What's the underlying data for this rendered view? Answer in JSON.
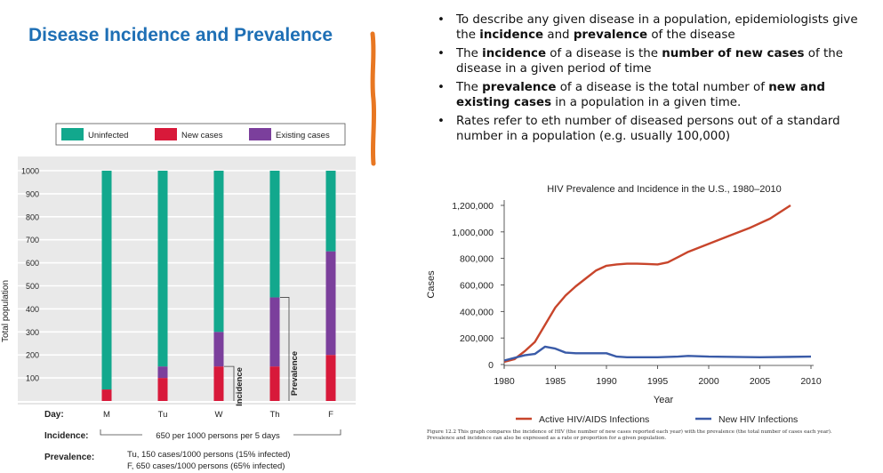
{
  "slide": {
    "title": "Disease Incidence and Prevalence",
    "bullets": [
      [
        "To describe any given disease in a population, epidemiologists give the ",
        {
          "b": "incidence"
        },
        " and ",
        {
          "b": "prevalence"
        },
        " of the disease"
      ],
      [
        "The ",
        {
          "b": "incidence"
        },
        " of a disease is the ",
        {
          "b": "number of new cases"
        },
        " of the disease in a given period of time"
      ],
      [
        "The ",
        {
          "b": "prevalence"
        },
        " of a disease is the total number of ",
        {
          "b": "new and existing cases"
        },
        " in a population in a given time."
      ],
      [
        "Rates refer to eth number of diseased persons out of a standard number in a population (e.g. usually 100,000)"
      ]
    ],
    "accent_color": "#e87722"
  },
  "chart_data": [
    {
      "type": "bar",
      "stacked": true,
      "ylabel": "Total population",
      "ylim": [
        0,
        1000
      ],
      "yticks": [
        100,
        200,
        300,
        400,
        500,
        600,
        700,
        800,
        900,
        1000
      ],
      "day_label": "Day:",
      "categories": [
        "M",
        "Tu",
        "W",
        "Th",
        "F"
      ],
      "series": [
        {
          "name": "New cases",
          "color": "#d8193a",
          "values": [
            50,
            100,
            150,
            150,
            200
          ]
        },
        {
          "name": "Existing cases",
          "color": "#7b3f9c",
          "values": [
            0,
            50,
            150,
            300,
            450
          ]
        },
        {
          "name": "Uninfected",
          "color": "#12a88d",
          "values": [
            950,
            850,
            700,
            550,
            350
          ]
        }
      ],
      "legend_order": [
        "Uninfected",
        "New cases",
        "Existing cases"
      ],
      "bracket_labels": [
        "Incidence",
        "Prevalence"
      ],
      "incidence_label": "Incidence:",
      "incidence_text": "650 per 1000 persons per 5 days",
      "prevalence_label": "Prevalence:",
      "prevalence_lines": [
        "Tu, 150 cases/1000 persons (15% infected)",
        "F, 650 cases/1000 persons (65% infected)"
      ]
    },
    {
      "type": "line",
      "title": "HIV Prevalence and Incidence in the U.S., 1980–2010",
      "xlabel": "Year",
      "ylabel": "Cases",
      "xlim": [
        1980,
        2010
      ],
      "ylim": [
        0,
        1200000
      ],
      "xticks": [
        1980,
        1985,
        1990,
        1995,
        2000,
        2005,
        2010
      ],
      "yticks": [
        0,
        200000,
        400000,
        600000,
        800000,
        1000000,
        1200000
      ],
      "ytick_labels": [
        "0",
        "200,000",
        "400,000",
        "600,000",
        "800,000",
        "1,000,000",
        "1,200,000"
      ],
      "series": [
        {
          "name": "Active HIV/AIDS Infections",
          "color": "#c8452b",
          "x": [
            1980,
            1981,
            1982,
            1983,
            1984,
            1985,
            1986,
            1987,
            1988,
            1989,
            1990,
            1991,
            1992,
            1993,
            1994,
            1995,
            1996,
            1997,
            1998,
            2000,
            2002,
            2004,
            2006,
            2008
          ],
          "y": [
            20000,
            40000,
            100000,
            170000,
            300000,
            430000,
            520000,
            590000,
            650000,
            710000,
            745000,
            755000,
            760000,
            760000,
            758000,
            755000,
            770000,
            810000,
            850000,
            910000,
            970000,
            1030000,
            1100000,
            1200000
          ]
        },
        {
          "name": "New HIV Infections",
          "color": "#3a5ba8",
          "x": [
            1980,
            1981,
            1982,
            1983,
            1984,
            1985,
            1986,
            1987,
            1988,
            1990,
            1991,
            1992,
            1995,
            1997,
            1998,
            2000,
            2005,
            2010
          ],
          "y": [
            30000,
            50000,
            70000,
            80000,
            135000,
            120000,
            90000,
            85000,
            85000,
            85000,
            60000,
            55000,
            55000,
            60000,
            65000,
            60000,
            55000,
            60000
          ]
        }
      ],
      "caption": "Figure 12.2 This graph compares the incidence of HIV (the number of new cases reported each year) with the prevalence (the total number of cases each year). Prevalence and incidence can also be expressed as a rate or proportion for a given population."
    }
  ]
}
